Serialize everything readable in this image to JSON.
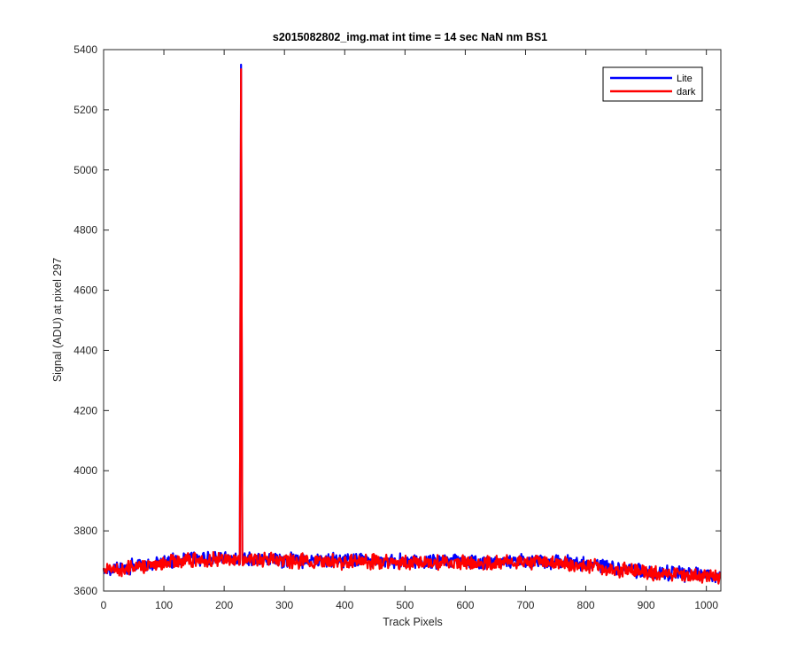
{
  "chart_data": {
    "type": "line",
    "title": "s2015082802_img.mat int time = 14 sec  NaN nm BS1",
    "xlabel": "Track Pixels",
    "ylabel": "Signal (ADU)  at pixel 297",
    "xlim": [
      0,
      1024
    ],
    "ylim": [
      3600,
      5400
    ],
    "xticks": [
      0,
      100,
      200,
      300,
      400,
      500,
      600,
      700,
      800,
      900,
      1000
    ],
    "yticks": [
      3600,
      3800,
      4000,
      4200,
      4400,
      4600,
      4800,
      5000,
      5200,
      5400
    ],
    "grid": false,
    "legend_position": "top-right",
    "spike": {
      "x": 228,
      "lite_peak": 5350,
      "dark_peak": 5335
    },
    "series": [
      {
        "name": "Lite",
        "color": "#0000ff",
        "x": [
          0,
          25,
          50,
          75,
          100,
          125,
          150,
          175,
          200,
          220,
          226,
          228,
          230,
          236,
          250,
          275,
          300,
          325,
          350,
          375,
          400,
          425,
          450,
          475,
          500,
          525,
          550,
          575,
          600,
          625,
          650,
          675,
          700,
          725,
          750,
          775,
          800,
          825,
          850,
          875,
          900,
          925,
          950,
          975,
          1000,
          1023
        ],
        "values": [
          3668,
          3675,
          3683,
          3690,
          3697,
          3703,
          3707,
          3708,
          3708,
          3707,
          3706,
          5350,
          3706,
          3705,
          3706,
          3705,
          3704,
          3703,
          3702,
          3701,
          3700,
          3700,
          3700,
          3700,
          3699,
          3699,
          3698,
          3698,
          3697,
          3697,
          3697,
          3697,
          3698,
          3699,
          3698,
          3694,
          3688,
          3682,
          3676,
          3671,
          3666,
          3661,
          3657,
          3654,
          3652,
          3652
        ]
      },
      {
        "name": "dark",
        "color": "#ff0000",
        "x": [
          0,
          25,
          50,
          75,
          100,
          125,
          150,
          175,
          200,
          220,
          226,
          228,
          230,
          236,
          250,
          275,
          300,
          325,
          350,
          375,
          400,
          425,
          450,
          475,
          500,
          525,
          550,
          575,
          600,
          625,
          650,
          675,
          700,
          725,
          750,
          775,
          800,
          825,
          850,
          875,
          900,
          925,
          950,
          975,
          1000,
          1023
        ],
        "values": [
          3665,
          3672,
          3680,
          3687,
          3694,
          3700,
          3704,
          3705,
          3705,
          3704,
          3703,
          5335,
          3703,
          3702,
          3703,
          3702,
          3701,
          3700,
          3699,
          3698,
          3697,
          3697,
          3697,
          3697,
          3696,
          3696,
          3695,
          3695,
          3694,
          3694,
          3694,
          3694,
          3695,
          3696,
          3695,
          3691,
          3685,
          3679,
          3673,
          3668,
          3663,
          3658,
          3654,
          3651,
          3649,
          3649
        ]
      }
    ]
  }
}
